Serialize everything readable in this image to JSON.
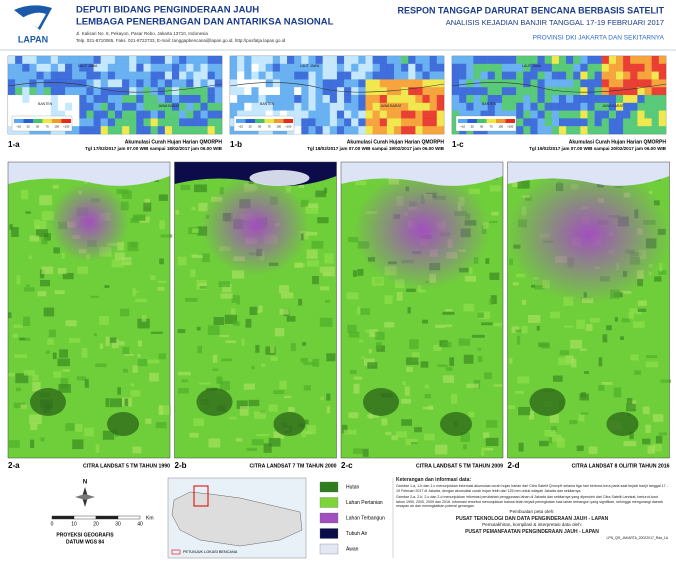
{
  "header": {
    "logo": "LAPAN",
    "org_line1": "DEPUTI BIDANG PENGINDERAAN JAUH",
    "org_line2": "LEMBAGA PENERBANGAN DAN ANTARIKSA NASIONAL",
    "address": "Jl. Kalisari No. 8, Pekayon, Pasar Rebo, Jakarta 13710, Indonesia",
    "contact": "Telp. 021-8710065, Faks. 021-8722733, E-mail: tanggapbencana@lapan.go.id, http://pusfatja.lapan.go.id",
    "title": "RESPON TANGGAP DARURAT BENCANA BERBASIS SATELIT",
    "subtitle": "ANALISIS KEJADIAN BANJIR TANGGAL 17-19 FEBRUARI 2017",
    "region": "PROVINSI DKI JAKARTA DAN SEKITARNYA"
  },
  "rainfall_legend": [
    "<10",
    "25",
    "50",
    "75",
    "100",
    ">100"
  ],
  "map_labels": [
    "LAUT JAWA",
    "BANTEN",
    "JAWA BARAT"
  ],
  "rainfall_panels": [
    {
      "id": "1-a",
      "caption": "Akumulasi Curah Hujan Harian QMORPH",
      "period": "Tgl 17/02/2017  jam 07.00 WIB sampai 18/02/2017 jam 06.00 WIB"
    },
    {
      "id": "1-b",
      "caption": "Akumulasi Curah Hujan Harian QMORPH",
      "period": "Tgl 18/02/2017  jam 07.00 WIB sampai 19/02/2017 jam 06.00 WIB"
    },
    {
      "id": "1-c",
      "caption": "Akumulasi Curah Hujan Harian QMORPH",
      "period": "Tgl 19/02/2017  jam 07.00 WIB sampai 20/02/2017 jam 06.00 WIB"
    }
  ],
  "landsat_panels": [
    {
      "id": "2-a",
      "caption": "CITRA LANDSAT 5 TM TAHUN 1990"
    },
    {
      "id": "2-b",
      "caption": "CITRA LANDSAT 7 TM TAHUN 2000"
    },
    {
      "id": "2-c",
      "caption": "CITRA LANDSAT 5 TM TAHUN 2009"
    },
    {
      "id": "2-d",
      "caption": "CITRA LANDSAT 8 OLI/TIR TAHUN 2016"
    }
  ],
  "compass": "N",
  "scale": {
    "ticks": [
      "0",
      "10",
      "20",
      "30",
      "40"
    ],
    "unit": "Km"
  },
  "projection": "PROYEKSI GEOGRAFIS",
  "datum": "DATUM WGS 84",
  "inset_label": "PETUNJUK LOKASI BENCANA",
  "legend": [
    "Hutan",
    "Lahan Pertanian",
    "Lahan Terbangun",
    "Tubuh Air",
    "Awan"
  ],
  "notes": {
    "heading": "Keterangan dan informasi data:",
    "paragraphs": [
      "Gambar 1-a, 1-b dan 1-c menunjukkan informasi akumulasi curah hujan harian dari Citra Satelit QmorpH selama tiga hari berturut-turut pada saat terjadi banjir tanggal 17 - 19 Februari 2017 di Jakarta, dengan akumulasi curah hujan lebih dari 125 mm untuk wilayah Jakarta dan sekitarnya.",
      "Gambar 2-a, 2-b, 2-c dan 2-d menunjukkan informasi perubahan penggunaan lahan di Jakarta dan sekitarnya yang diperoleh dari Citra Satelit Landsat, berturut-turut tahun 1990, 2000, 2009 dan 2016. Informasi tersebut menunjukkan bahwa telah terjadi peningkatan luas lahan terbangun yang signifikan, sehingga mengurangi daerah resapan air dan meningkatkan potensi genangan."
    ],
    "made_by_label": "Pembuatan peta oleh:",
    "made_by": "PUSAT TEKNOLOGI DAN DATA PENGINDERAAN JAUH - LAPAN",
    "compiled_by_label": "Pemutakhiran, kompilasi & interpretasi data oleh:",
    "compiled_by": "PUSAT PEMANFAATAN PENGINDERAAN JAUH - LAPAN",
    "code": "LPN_QR_JAKARTA_20022017_Rda_1A"
  }
}
